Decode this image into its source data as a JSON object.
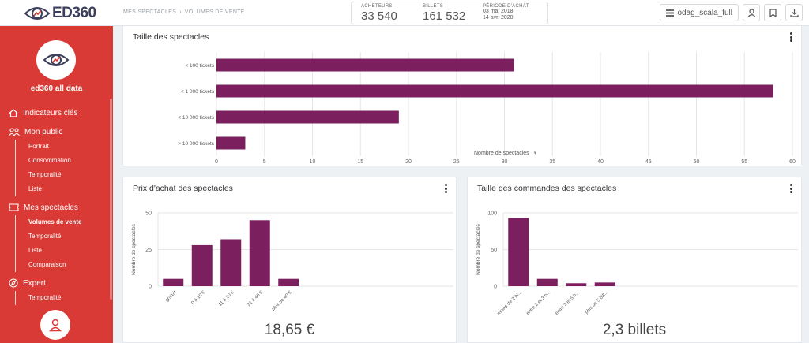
{
  "app": {
    "logo_text": "ED360"
  },
  "breadcrumb": [
    "MES SPECTACLES",
    "VOLUMES DE VENTE"
  ],
  "stats": {
    "buyers_label": "ACHETEURS",
    "buyers_value": "33 540",
    "tickets_label": "BILLETS",
    "tickets_value": "161 532",
    "period_label": "PÉRIODE D'ACHAT",
    "period_start": "03 mai 2018",
    "period_end": "14 avr. 2020"
  },
  "toolbar": {
    "dataset": "odag_scala_full"
  },
  "sidebar": {
    "title": "ed360 all data",
    "sections": [
      {
        "label": "Indicateurs clés",
        "icon": "home-icon",
        "items": []
      },
      {
        "label": "Mon public",
        "icon": "people-icon",
        "items": [
          "Portrait",
          "Consommation",
          "Temporalité",
          "Liste"
        ]
      },
      {
        "label": "Mes spectacles",
        "icon": "ticket-icon",
        "items": [
          "Volumes de vente",
          "Temporalité",
          "Liste",
          "Comparaison"
        ]
      },
      {
        "label": "Expert",
        "icon": "compass-icon",
        "items": [
          "Temporalité"
        ]
      }
    ],
    "active_item": "Volumes de vente"
  },
  "colors": {
    "bar": "#7b1f5e",
    "sidebar": "#d93a35",
    "grid": "#e6e6e6"
  },
  "cards": {
    "size": {
      "title": "Taille des spectacles",
      "xlabel": "Nombre de spectacles"
    },
    "price": {
      "title": "Prix d'achat des spectacles",
      "ylabel": "Nombre de spectacles",
      "kpi": "18,65 €"
    },
    "orders": {
      "title": "Taille des commandes des spectacles",
      "ylabel": "Nombre de spectacles",
      "kpi": "2,3 billets"
    }
  },
  "chart_data": [
    {
      "type": "bar",
      "orientation": "horizontal",
      "title": "Taille des spectacles",
      "categories": [
        "< 100 tickets",
        "< 1 000 tickets",
        "< 10 000 tickets",
        "> 10 000 tickets"
      ],
      "values": [
        31,
        58,
        19,
        3
      ],
      "xlabel": "Nombre de spectacles",
      "xlim": [
        0,
        60
      ],
      "xticks": [
        0,
        5,
        10,
        15,
        20,
        25,
        30,
        35,
        40,
        45,
        50,
        55,
        60
      ],
      "grid": true
    },
    {
      "type": "bar",
      "title": "Prix d'achat des spectacles",
      "categories": [
        "gratuit",
        "0 à 10 €",
        "11 à 20 €",
        "21 à 40 €",
        "plus de 40 €"
      ],
      "values": [
        5,
        28,
        32,
        45,
        5
      ],
      "ylabel": "Nombre de spectacles",
      "ylim": [
        0,
        50
      ],
      "yticks": [
        0,
        25,
        50
      ],
      "grid": true
    },
    {
      "type": "bar",
      "title": "Taille des commandes des spectacles",
      "categories": [
        "moins de 2 bi...",
        "entre 2 et 3 b...",
        "entre 3 et 5 b...",
        "plus de 5 bill..."
      ],
      "values": [
        93,
        10,
        4,
        5
      ],
      "ylabel": "Nombre de spectacles",
      "ylim": [
        0,
        100
      ],
      "yticks": [
        0,
        50,
        100
      ],
      "grid": true
    }
  ]
}
